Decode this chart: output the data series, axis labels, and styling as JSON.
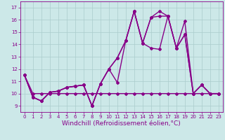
{
  "xlabel": "Windchill (Refroidissement éolien,°C)",
  "ylabel": "",
  "background_color": "#cce8e8",
  "line_color": "#880088",
  "grid_color": "#aacccc",
  "xlim": [
    -0.5,
    23.5
  ],
  "ylim": [
    8.5,
    17.5
  ],
  "xticks": [
    0,
    1,
    2,
    3,
    4,
    5,
    6,
    7,
    8,
    9,
    10,
    11,
    12,
    13,
    14,
    15,
    16,
    17,
    18,
    19,
    20,
    21,
    22,
    23
  ],
  "yticks": [
    9,
    10,
    11,
    12,
    13,
    14,
    15,
    16,
    17
  ],
  "series": [
    [
      11.5,
      9.7,
      9.4,
      10.1,
      10.2,
      10.5,
      10.6,
      10.7,
      9.0,
      10.8,
      12.0,
      12.9,
      14.3,
      16.7,
      14.1,
      13.7,
      13.6,
      16.3,
      13.7,
      15.9,
      10.0,
      10.7,
      10.0,
      10.0
    ],
    [
      11.5,
      9.7,
      9.4,
      10.1,
      10.2,
      10.5,
      10.6,
      10.7,
      9.0,
      10.8,
      12.0,
      12.9,
      14.3,
      16.7,
      14.1,
      16.2,
      16.3,
      16.3,
      13.7,
      14.8,
      10.0,
      10.7,
      10.0,
      10.0
    ],
    [
      11.5,
      9.7,
      9.4,
      10.1,
      10.2,
      10.5,
      10.6,
      10.7,
      9.0,
      10.8,
      12.0,
      10.9,
      14.3,
      16.7,
      14.1,
      16.2,
      16.7,
      16.3,
      13.7,
      14.8,
      10.0,
      10.7,
      10.0,
      10.0
    ],
    [
      11.5,
      10.0,
      10.0,
      10.0,
      10.0,
      10.0,
      10.0,
      10.0,
      10.0,
      10.0,
      10.0,
      10.0,
      10.0,
      10.0,
      10.0,
      10.0,
      10.0,
      10.0,
      10.0,
      10.0,
      10.0,
      10.0,
      10.0,
      10.0
    ]
  ],
  "marker": "D",
  "marker_size": 2,
  "line_width": 1.0,
  "tick_fontsize": 5,
  "label_fontsize": 6.5
}
